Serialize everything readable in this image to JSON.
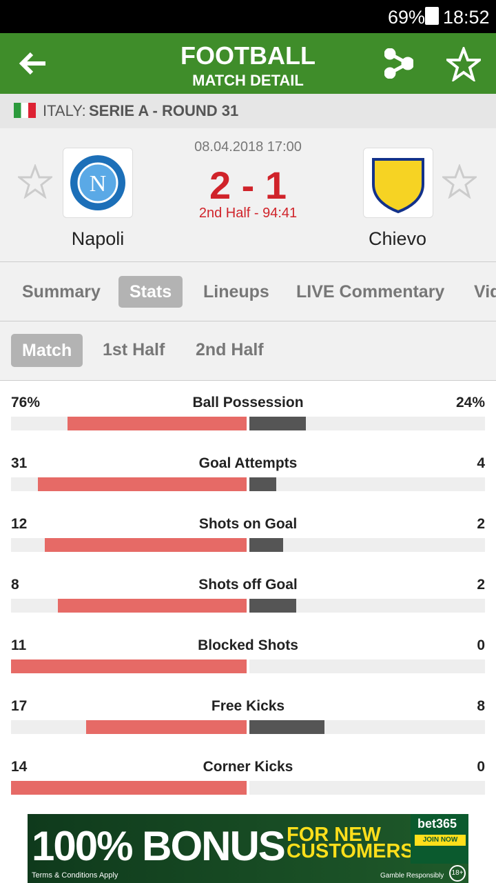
{
  "status_bar": {
    "battery": "69%",
    "time": "18:52"
  },
  "header": {
    "title": "FOOTBALL",
    "subtitle": "MATCH DETAIL"
  },
  "league": {
    "country": "ITALY:",
    "name": "SERIE A - ROUND 31"
  },
  "match": {
    "datetime": "08.04.2018 17:00",
    "score": "2 - 1",
    "status": "2nd Half - 94:41",
    "home_team": "Napoli",
    "away_team": "Chievo"
  },
  "tabs": [
    "Summary",
    "Stats",
    "Lineups",
    "LIVE Commentary",
    "Video"
  ],
  "subtabs": [
    "Match",
    "1st Half",
    "2nd Half"
  ],
  "stats": [
    {
      "name": "Ball Possession",
      "home": 76,
      "away": 24,
      "home_label": "76%",
      "away_label": "24%"
    },
    {
      "name": "Goal Attempts",
      "home": 31,
      "away": 4
    },
    {
      "name": "Shots on Goal",
      "home": 12,
      "away": 2
    },
    {
      "name": "Shots off Goal",
      "home": 8,
      "away": 2
    },
    {
      "name": "Blocked Shots",
      "home": 11,
      "away": 0
    },
    {
      "name": "Free Kicks",
      "home": 17,
      "away": 8
    },
    {
      "name": "Corner Kicks",
      "home": 14,
      "away": 0
    }
  ],
  "ad": {
    "headline": "100% BONUS",
    "tagline_1": "FOR NEW",
    "tagline_2": "CUSTOMERS",
    "brand": "bet365",
    "button": "JOIN NOW",
    "terms": "Terms & Conditions Apply",
    "gamble": "Gamble Responsibly",
    "age": "18+"
  }
}
